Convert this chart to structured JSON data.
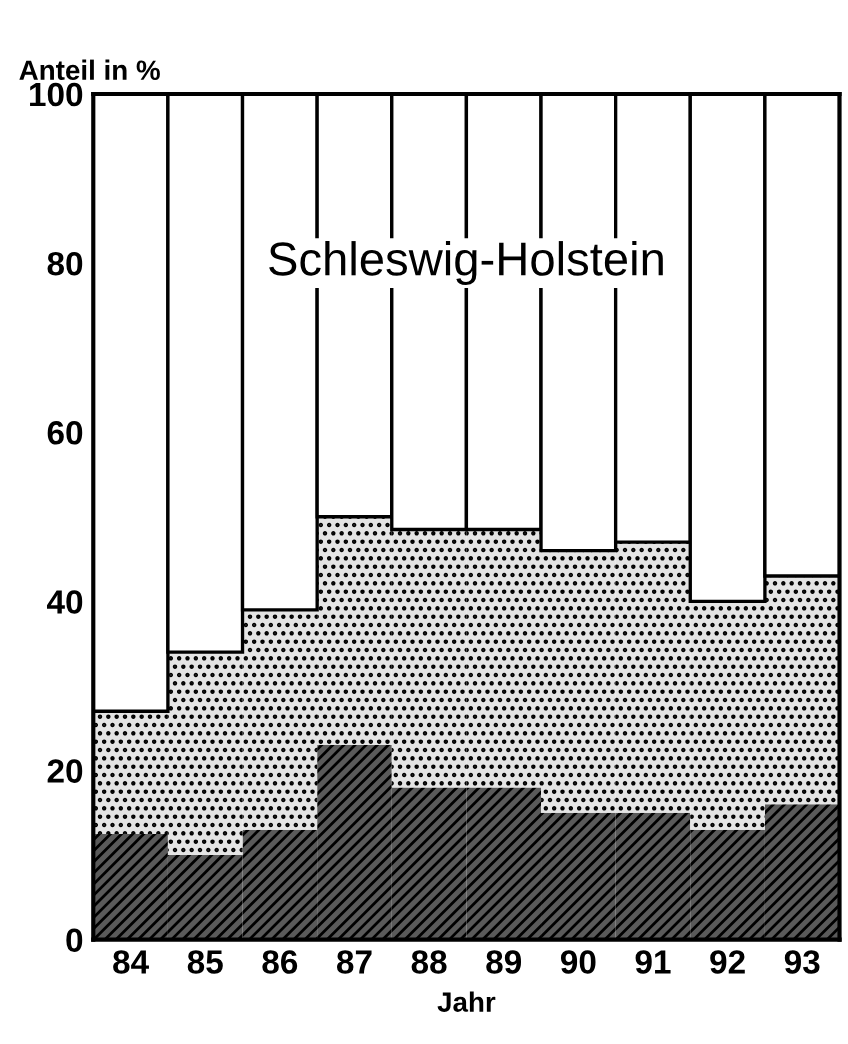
{
  "chart_data": {
    "type": "bar",
    "title": "Schleswig-Holstein",
    "ylabel": "Anteil in %",
    "xlabel": "Jahr",
    "categories": [
      "84",
      "85",
      "86",
      "87",
      "88",
      "89",
      "90",
      "91",
      "92",
      "93"
    ],
    "stacked": true,
    "ylim": [
      0,
      100
    ],
    "yticks": [
      0,
      20,
      40,
      60,
      80,
      100
    ],
    "grid": false,
    "legend": false,
    "series": [
      {
        "color": "#5a5a5a",
        "values": [
          12.5,
          10,
          13,
          23,
          18,
          18,
          15,
          15,
          13,
          16
        ]
      },
      {
        "color": "#e4e4e4",
        "values": [
          14.5,
          24,
          26,
          27,
          30.5,
          30.5,
          31,
          32,
          27,
          27
        ]
      },
      {
        "color": "#ffffff",
        "values": [
          73,
          66,
          61,
          50,
          51.5,
          51.5,
          54,
          53,
          60,
          57
        ]
      }
    ]
  }
}
